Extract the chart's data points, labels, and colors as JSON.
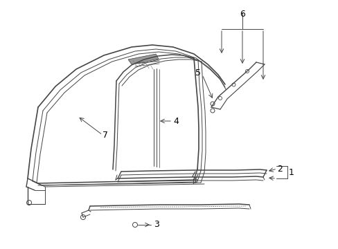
{
  "bg_color": "#ffffff",
  "line_color": "#444444",
  "label_color": "#000000",
  "fig_width": 4.89,
  "fig_height": 3.6,
  "dpi": 100
}
